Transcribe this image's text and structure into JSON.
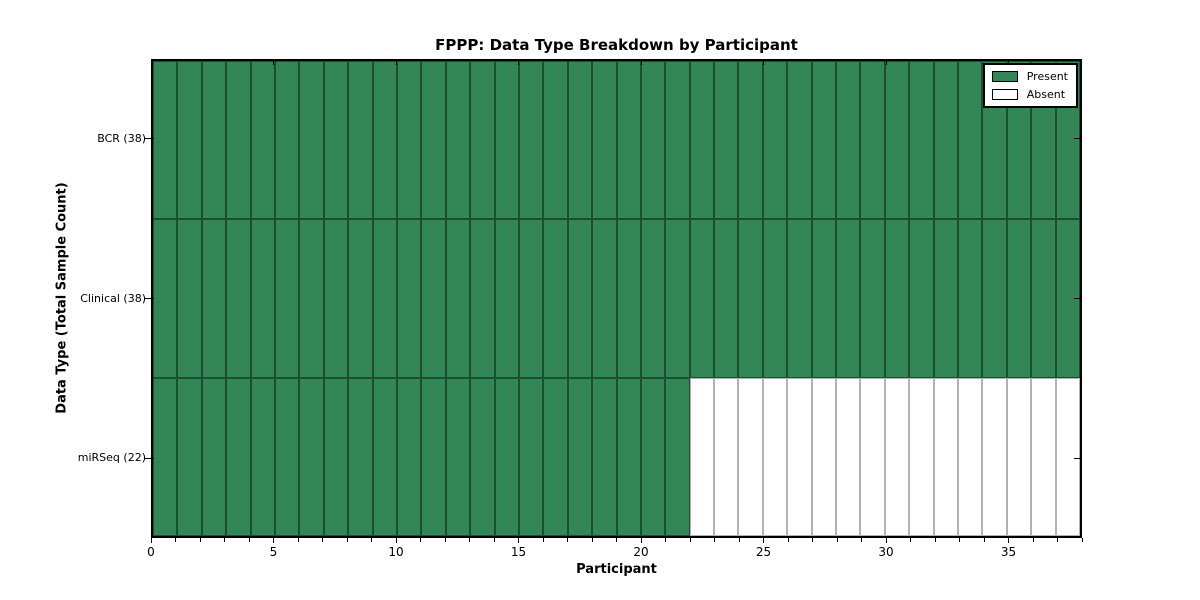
{
  "chart_data": {
    "type": "heatmap",
    "title": "FPPP: Data Type Breakdown by Participant",
    "xlabel": "Participant",
    "ylabel": "Data Type (Total Sample Count)",
    "x_range": [
      0,
      38
    ],
    "x_ticks": [
      0,
      5,
      10,
      15,
      20,
      25,
      30,
      35
    ],
    "n_participants": 38,
    "rows": [
      {
        "label": "BCR (38)",
        "data_type": "BCR",
        "total_sample_count": 38,
        "present_count": 38,
        "absent_count": 0
      },
      {
        "label": "Clinical (38)",
        "data_type": "Clinical",
        "total_sample_count": 38,
        "present_count": 38,
        "absent_count": 0
      },
      {
        "label": "miRSeq (22)",
        "data_type": "miRSeq",
        "total_sample_count": 22,
        "present_count": 22,
        "absent_count": 16
      }
    ],
    "legend": {
      "position": "upper right",
      "entries": [
        {
          "label": "Present",
          "color": "#338756"
        },
        {
          "label": "Absent",
          "color": "#ffffff"
        }
      ]
    },
    "colors": {
      "present": "#338756",
      "absent": "#ffffff",
      "grid_line_on_present": "rgba(0,0,0,0.42)",
      "grid_line_on_absent": "rgba(0,0,0,0.30)",
      "axis_border": "#000000"
    },
    "grid": true
  }
}
